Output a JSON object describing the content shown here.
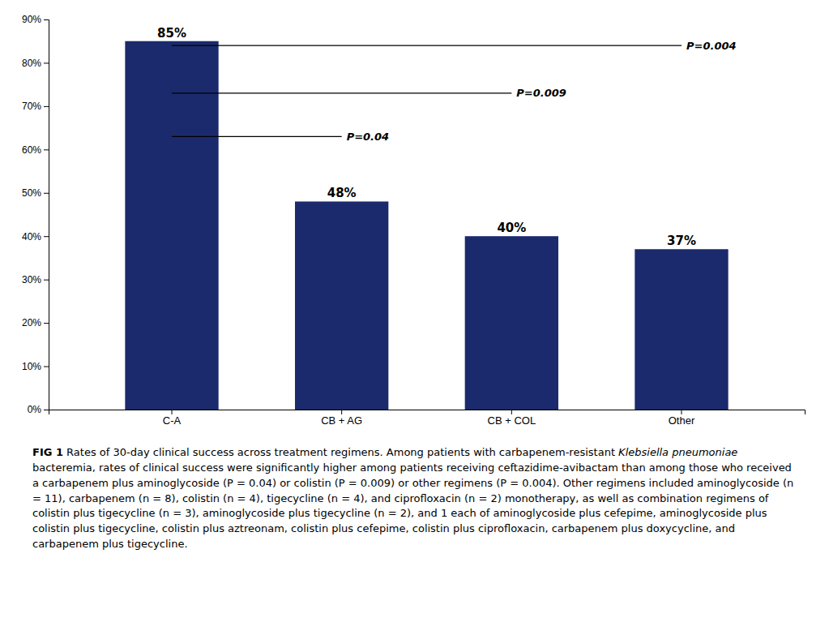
{
  "chart_data": {
    "type": "bar",
    "categories": [
      "C-A",
      "CB + AG",
      "CB + COL",
      "Other"
    ],
    "values": [
      85,
      48,
      40,
      37
    ],
    "value_labels": [
      "85%",
      "48%",
      "40%",
      "37%"
    ],
    "data_labels": true,
    "color": "#1a2a6c",
    "ylim": [
      0,
      90
    ],
    "yticks": [
      {
        "value": 0,
        "label": "0%"
      },
      {
        "value": 10,
        "label": "10%"
      },
      {
        "value": 20,
        "label": "20%"
      },
      {
        "value": 30,
        "label": "30%"
      },
      {
        "value": 40,
        "label": "40%"
      },
      {
        "value": 50,
        "label": "50%"
      },
      {
        "value": 60,
        "label": "60%"
      },
      {
        "value": 70,
        "label": "70%"
      },
      {
        "value": 80,
        "label": "80%"
      },
      {
        "value": 90,
        "label": "90%"
      }
    ],
    "grid": false,
    "annotations": [
      {
        "text": "P=0.04",
        "from": "C-A",
        "to": "CB + AG",
        "y": 63
      },
      {
        "text": "P=0.009",
        "from": "C-A",
        "to": "CB + COL",
        "y": 73
      },
      {
        "text": "P=0.004",
        "from": "C-A",
        "to": "Other",
        "y": 84
      }
    ],
    "caption": [
      {
        "text": "FIG 1",
        "style": "bold"
      },
      {
        "text": " Rates of 30-day clinical success across treatment regimens. Among patients with carbapenem-resistant ",
        "style": "normal"
      },
      {
        "text": "Klebsiella pneumoniae",
        "style": "italic"
      },
      {
        "text": " bacteremia, rates of clinical success were significantly higher among patients receiving ceftazidime-avibactam than among those who received a carbapenem plus aminoglycoside (P = 0.04) or colistin (P = 0.009) or other regimens (P = 0.004). Other regimens included aminoglycoside (n = 11), carbapenem (n = 8), colistin (n = 4), tigecycline (n = 4), and ciprofloxacin (n = 2) monotherapy, as well as combination regimens of colistin plus tigecycline (n = 3), aminoglycoside plus tigecycline (n = 2), and 1 each of aminoglycoside plus cefepime, aminoglycoside plus colistin plus tigecycline, colistin plus aztreonam, colistin plus cefepime, colistin plus ciprofloxacin, carbapenem plus doxycycline, and carbapenem plus tigecycline.",
        "style": "normal"
      }
    ]
  }
}
